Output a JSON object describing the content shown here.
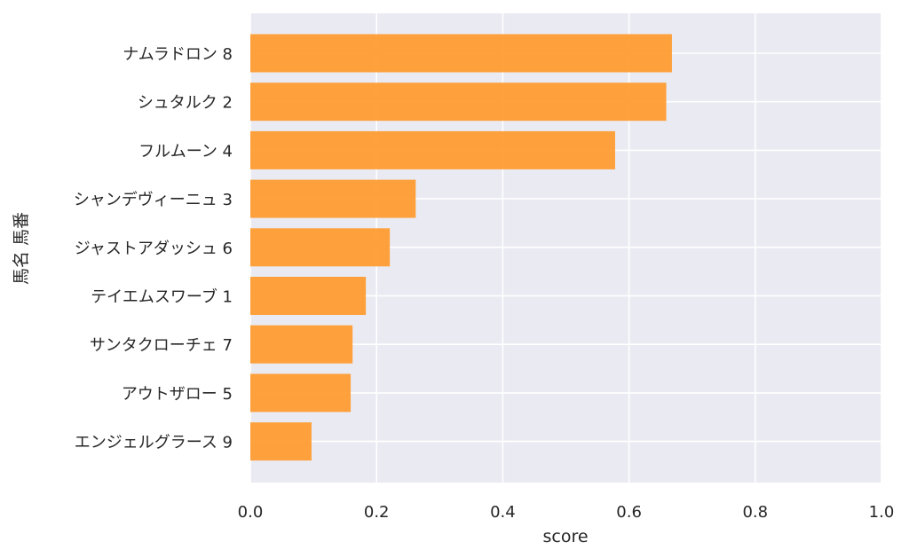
{
  "chart_data": {
    "type": "bar",
    "orientation": "horizontal",
    "categories": [
      "ナムラドロン 8",
      "シュタルク 2",
      "フルムーン 4",
      "シャンデヴィーニュ 3",
      "ジャストアダッシュ 6",
      "テイエムスワーブ 1",
      "サンタクローチェ 7",
      "アウトザロー 5",
      "エンジェルグラース 9"
    ],
    "values": [
      0.668,
      0.659,
      0.578,
      0.262,
      0.221,
      0.183,
      0.162,
      0.159,
      0.097
    ],
    "xlabel": "score",
    "ylabel": "馬名 馬番",
    "xlim": [
      0.0,
      1.0
    ],
    "xticks": [
      "0.0",
      "0.2",
      "0.4",
      "0.6",
      "0.8",
      "1.0"
    ],
    "grid": true,
    "bar_color": "#FF9A2E",
    "background_color": "#EAEAF2"
  }
}
